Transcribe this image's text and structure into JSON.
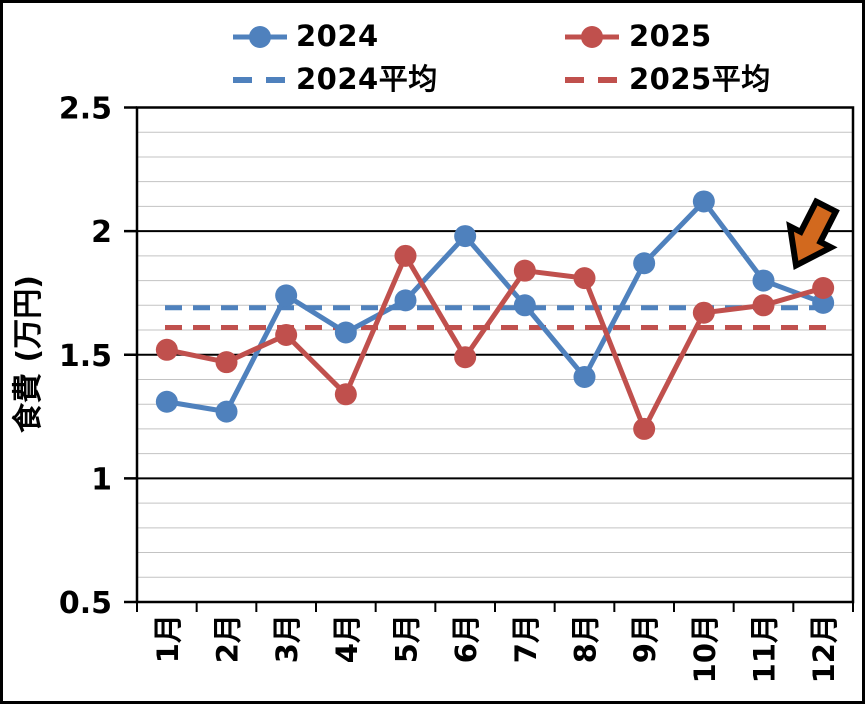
{
  "legend": {
    "items": [
      {
        "label": "2024",
        "color": "#4F81BD",
        "style": "solid-line-marker"
      },
      {
        "label": "2025",
        "color": "#C0504D",
        "style": "solid-line-marker"
      },
      {
        "label": "2024平均",
        "color": "#4F81BD",
        "style": "dashed-line"
      },
      {
        "label": "2025平均",
        "color": "#C0504D",
        "style": "dashed-line"
      }
    ]
  },
  "axes": {
    "y_title": "食費 (万円)",
    "y_tick_labels": [
      "2.5",
      "2",
      "1.5",
      "1",
      "0.5"
    ],
    "y_tick_values": [
      2.5,
      2,
      1.5,
      1,
      0.5
    ]
  },
  "annotations": {
    "arrow_color": "#D2691E",
    "arrow_outline": "#000000",
    "arrow_points_at": "12月"
  },
  "chart_data": {
    "type": "line",
    "categories": [
      "1月",
      "2月",
      "3月",
      "4月",
      "5月",
      "6月",
      "7月",
      "8月",
      "9月",
      "10月",
      "11月",
      "12月"
    ],
    "series": [
      {
        "name": "2024",
        "color": "#4F81BD",
        "style": "solid",
        "values": [
          1.31,
          1.27,
          1.74,
          1.59,
          1.72,
          1.98,
          1.7,
          1.41,
          1.87,
          2.12,
          1.8,
          1.71
        ]
      },
      {
        "name": "2025",
        "color": "#C0504D",
        "style": "solid",
        "values": [
          1.52,
          1.47,
          1.58,
          1.34,
          1.9,
          1.49,
          1.84,
          1.81,
          1.2,
          1.67,
          1.7,
          1.77
        ]
      },
      {
        "name": "2024平均",
        "color": "#4F81BD",
        "style": "dashed",
        "value": 1.69
      },
      {
        "name": "2025平均",
        "color": "#C0504D",
        "style": "dashed",
        "value": 1.61
      }
    ],
    "title": "",
    "xlabel": "",
    "ylabel": "食費 (万円)",
    "ylim": [
      0.5,
      2.5
    ],
    "y_major_step": 0.5,
    "y_minor_step": 0.1,
    "grid": true,
    "legend_position": "top"
  }
}
